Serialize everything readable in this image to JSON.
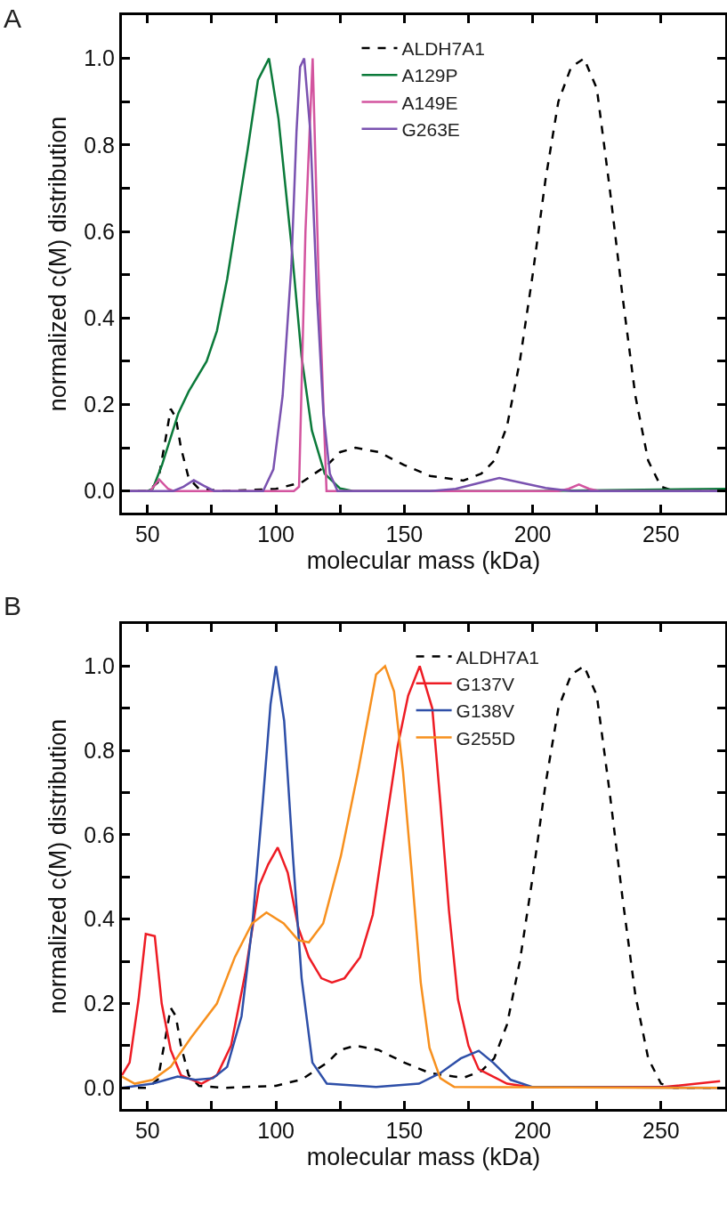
{
  "chart_data": [
    {
      "type": "line",
      "annotations": [
        "A"
      ],
      "xlabel": "molecular mass (kDa)",
      "ylabel": "normalized c(M) distribution",
      "xlim": [
        40,
        275
      ],
      "ylim": [
        -0.05,
        1.1
      ],
      "xticks": [
        50,
        {
          "value": 75,
          "label": null
        },
        100,
        {
          "value": 125,
          "label": null
        },
        150,
        {
          "value": 175,
          "label": null
        },
        200,
        {
          "value": 225,
          "label": null
        },
        250
      ],
      "yticks": [
        {
          "value": 0,
          "label": "0.0"
        },
        {
          "value": 0.1,
          "label": null
        },
        {
          "value": 0.2,
          "label": "0.2"
        },
        {
          "value": 0.3,
          "label": null
        },
        {
          "value": 0.4,
          "label": "0.4"
        },
        {
          "value": 0.5,
          "label": null
        },
        {
          "value": 0.6,
          "label": "0.6"
        },
        {
          "value": 0.7,
          "label": null
        },
        {
          "value": 0.8,
          "label": "0.8"
        },
        {
          "value": 0.9,
          "label": null
        },
        {
          "value": 1,
          "label": "1.0"
        }
      ],
      "grid": false,
      "legend": "top",
      "marker": "none",
      "series": [
        {
          "name": "ALDH7A1",
          "color": "#000000",
          "line_style": "dashed",
          "x": [
            40,
            50,
            54,
            57,
            59,
            61,
            63,
            66,
            70,
            80,
            100,
            110,
            120,
            125,
            131,
            140,
            150,
            160,
            173,
            180,
            185,
            190,
            195,
            200,
            205,
            210,
            215,
            220,
            225,
            230,
            235,
            240,
            245,
            250,
            255,
            275
          ],
          "values": [
            0,
            0,
            0.02,
            0.12,
            0.19,
            0.17,
            0.1,
            0.03,
            0.005,
            0,
            0.005,
            0.02,
            0.06,
            0.09,
            0.1,
            0.09,
            0.06,
            0.035,
            0.024,
            0.04,
            0.07,
            0.15,
            0.3,
            0.5,
            0.72,
            0.9,
            0.98,
            1.0,
            0.93,
            0.7,
            0.45,
            0.22,
            0.07,
            0.01,
            0,
            0
          ]
        },
        {
          "name": "A129P",
          "color": "#0b7a3a",
          "line_style": "solid",
          "x": [
            40,
            50,
            52,
            55.6,
            62,
            66,
            73,
            77,
            81,
            85,
            89,
            93,
            97.3,
            101,
            106,
            110,
            114,
            119,
            125,
            130,
            200,
            275
          ],
          "values": [
            0,
            0,
            0.005,
            0.06,
            0.18,
            0.23,
            0.3,
            0.37,
            0.49,
            0.64,
            0.79,
            0.95,
            1.0,
            0.86,
            0.57,
            0.31,
            0.14,
            0.04,
            0.006,
            0,
            0,
            0.005
          ]
        },
        {
          "name": "A149E",
          "color": "#d3549f",
          "line_style": "solid",
          "x": [
            40,
            51,
            54.5,
            58,
            60,
            107,
            109,
            111.5,
            114.3,
            116.5,
            119.7,
            210,
            214,
            218,
            222,
            226,
            275
          ],
          "values": [
            0,
            0,
            0.027,
            0.005,
            0,
            0,
            0.01,
            0.6,
            1.0,
            0.52,
            0,
            0,
            0.005,
            0.015,
            0.005,
            0,
            0
          ]
        },
        {
          "name": "G263E",
          "color": "#7a52b0",
          "line_style": "solid",
          "x": [
            40,
            60,
            64,
            68,
            72,
            76,
            95,
            99,
            102.6,
            106,
            108,
            109.4,
            111,
            113.4,
            116,
            118.5,
            121,
            124,
            160,
            170,
            180,
            187,
            195,
            205,
            215,
            275
          ],
          "values": [
            0,
            0,
            0.01,
            0.025,
            0.012,
            0,
            0,
            0.05,
            0.22,
            0.52,
            0.83,
            0.98,
            1.0,
            0.83,
            0.45,
            0.18,
            0.04,
            0,
            0,
            0.005,
            0.02,
            0.03,
            0.02,
            0.007,
            0,
            0
          ]
        }
      ]
    },
    {
      "type": "line",
      "annotations": [
        "B"
      ],
      "xlabel": "molecular mass (kDa)",
      "ylabel": "normalized c(M) distribution",
      "xlim": [
        40,
        275
      ],
      "ylim": [
        -0.05,
        1.1
      ],
      "xticks": [
        50,
        {
          "value": 75,
          "label": null
        },
        100,
        {
          "value": 125,
          "label": null
        },
        150,
        {
          "value": 175,
          "label": null
        },
        200,
        {
          "value": 225,
          "label": null
        },
        250
      ],
      "yticks": [
        {
          "value": 0,
          "label": "0.0"
        },
        {
          "value": 0.1,
          "label": null
        },
        {
          "value": 0.2,
          "label": "0.2"
        },
        {
          "value": 0.3,
          "label": null
        },
        {
          "value": 0.4,
          "label": "0.4"
        },
        {
          "value": 0.5,
          "label": null
        },
        {
          "value": 0.6,
          "label": "0.6"
        },
        {
          "value": 0.7,
          "label": null
        },
        {
          "value": 0.8,
          "label": "0.8"
        },
        {
          "value": 0.9,
          "label": null
        },
        {
          "value": 1,
          "label": "1.0"
        }
      ],
      "grid": false,
      "legend": "top right",
      "marker": "none",
      "series": [
        {
          "name": "ALDH7A1",
          "color": "#000000",
          "line_style": "dashed",
          "x": [
            40,
            50,
            54,
            57,
            59,
            61,
            63,
            66,
            70,
            80,
            100,
            110,
            120,
            125,
            131,
            140,
            150,
            160,
            173,
            180,
            185,
            190,
            195,
            200,
            205,
            210,
            215,
            220,
            225,
            230,
            235,
            240,
            245,
            250,
            255,
            275
          ],
          "values": [
            0,
            0,
            0.02,
            0.12,
            0.19,
            0.17,
            0.1,
            0.03,
            0.005,
            0,
            0.005,
            0.02,
            0.06,
            0.09,
            0.1,
            0.09,
            0.06,
            0.035,
            0.024,
            0.04,
            0.07,
            0.15,
            0.3,
            0.5,
            0.72,
            0.9,
            0.98,
            1.0,
            0.93,
            0.7,
            0.45,
            0.22,
            0.07,
            0.01,
            0,
            0
          ]
        },
        {
          "name": "G137V",
          "color": "#ee1c24",
          "line_style": "solid",
          "x": [
            40,
            43,
            46.5,
            49.3,
            52.8,
            55.5,
            59,
            63,
            71,
            77,
            82.5,
            88,
            93.5,
            97,
            100.7,
            104.6,
            108.7,
            112.8,
            117.7,
            121.8,
            126.7,
            132.8,
            137.7,
            143.2,
            147.4,
            151.5,
            156,
            160.9,
            164,
            167.4,
            170.9,
            175,
            179,
            184.6,
            190,
            198.5,
            251,
            273
          ],
          "values": [
            0.03,
            0.06,
            0.21,
            0.365,
            0.36,
            0.2,
            0.09,
            0.03,
            0.01,
            0.03,
            0.1,
            0.27,
            0.48,
            0.53,
            0.57,
            0.51,
            0.38,
            0.31,
            0.26,
            0.25,
            0.26,
            0.31,
            0.41,
            0.64,
            0.81,
            0.93,
            1.0,
            0.9,
            0.68,
            0.42,
            0.21,
            0.1,
            0.044,
            0.027,
            0.01,
            0.002,
            0.002,
            0.016
          ]
        },
        {
          "name": "G138V",
          "color": "#2e4fa8",
          "line_style": "solid",
          "x": [
            40,
            52,
            61.7,
            68.6,
            75.5,
            81,
            86.6,
            90.7,
            94.9,
            97.9,
            100,
            103.2,
            106.6,
            110,
            114.2,
            119.8,
            139,
            155.7,
            164,
            172,
            179,
            184.6,
            191.5,
            200,
            275
          ],
          "values": [
            0,
            0.01,
            0.027,
            0.019,
            0.023,
            0.05,
            0.17,
            0.38,
            0.68,
            0.91,
            1.0,
            0.87,
            0.55,
            0.26,
            0.06,
            0.01,
            0.002,
            0.01,
            0.035,
            0.07,
            0.088,
            0.06,
            0.019,
            0.002,
            0
          ]
        },
        {
          "name": "G255D",
          "color": "#f7901e",
          "line_style": "solid",
          "x": [
            40,
            45,
            52,
            59,
            67,
            77,
            84,
            90.7,
            96.3,
            103,
            108.7,
            112.8,
            118.4,
            125.3,
            132,
            139,
            142.5,
            146,
            149.5,
            152.9,
            156.4,
            159.8,
            164,
            169.5,
            275
          ],
          "values": [
            0.027,
            0.01,
            0.019,
            0.05,
            0.12,
            0.2,
            0.31,
            0.39,
            0.416,
            0.39,
            0.35,
            0.345,
            0.39,
            0.55,
            0.75,
            0.98,
            1.0,
            0.94,
            0.75,
            0.51,
            0.25,
            0.095,
            0.023,
            0.002,
            0
          ]
        }
      ]
    }
  ]
}
